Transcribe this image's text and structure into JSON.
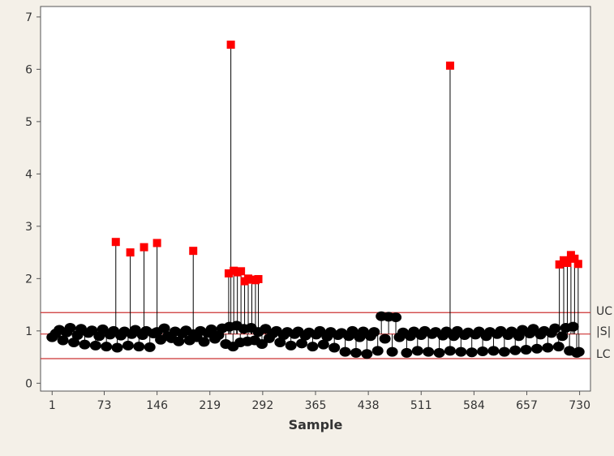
{
  "colors": {
    "background": "#f4f0e8",
    "plot_area": "#ffffff",
    "point": "#000000",
    "out_of_control_point": "#ff0000",
    "limit_line": "#cc3333",
    "axis": "#555555"
  },
  "chart_data": {
    "type": "scatter",
    "title": "",
    "xlabel": "Sample",
    "ylabel": "",
    "xlim": [
      -15,
      745
    ],
    "ylim": [
      -0.15,
      7.2
    ],
    "xticks": [
      1,
      73,
      146,
      219,
      292,
      365,
      438,
      511,
      584,
      657,
      730
    ],
    "yticks": [
      0,
      1,
      2,
      3,
      4,
      5,
      6,
      7
    ],
    "grid": false,
    "limits": [
      {
        "label": "UC",
        "value": 1.35
      },
      {
        "label": "|S|",
        "value": 0.94
      },
      {
        "label": "LC",
        "value": 0.47
      }
    ],
    "series": [
      {
        "role": "in-control",
        "marker": "circle",
        "x": [
          1,
          6,
          11,
          16,
          21,
          26,
          31,
          36,
          41,
          46,
          51,
          56,
          61,
          66,
          71,
          76,
          81,
          86,
          91,
          96,
          101,
          106,
          111,
          116,
          121,
          126,
          131,
          136,
          141,
          146,
          151,
          156,
          161,
          166,
          171,
          176,
          181,
          186,
          191,
          196,
          201,
          206,
          211,
          216,
          221,
          226,
          231,
          236,
          241,
          246,
          251,
          256,
          261,
          266,
          271,
          276,
          281,
          286,
          291,
          296,
          301,
          306,
          311,
          316,
          321,
          326,
          331,
          336,
          341,
          346,
          351,
          356,
          361,
          366,
          371,
          376,
          381,
          386,
          391,
          396,
          401,
          406,
          411,
          416,
          421,
          426,
          431,
          436,
          441,
          446,
          451,
          456,
          461,
          466,
          471,
          476,
          481,
          486,
          491,
          496,
          501,
          506,
          511,
          516,
          521,
          526,
          531,
          536,
          541,
          546,
          551,
          556,
          561,
          566,
          571,
          576,
          581,
          586,
          591,
          596,
          601,
          606,
          611,
          616,
          621,
          626,
          631,
          636,
          641,
          646,
          651,
          656,
          661,
          666,
          671,
          676,
          681,
          686,
          691,
          696,
          701,
          706,
          711,
          716,
          721,
          726,
          729
        ],
        "y": [
          0.88,
          0.95,
          1.02,
          0.82,
          0.97,
          1.06,
          0.78,
          0.92,
          1.04,
          0.74,
          0.96,
          1.01,
          0.72,
          0.9,
          1.03,
          0.7,
          0.93,
          1.0,
          0.68,
          0.91,
          0.99,
          0.72,
          0.94,
          1.02,
          0.7,
          0.92,
          1.0,
          0.69,
          0.95,
          0.98,
          0.83,
          1.05,
          0.9,
          0.86,
          0.99,
          0.8,
          0.95,
          1.01,
          0.82,
          0.94,
          0.88,
          1.0,
          0.79,
          0.96,
          1.03,
          0.85,
          0.92,
          1.05,
          0.75,
          1.08,
          0.7,
          1.1,
          0.78,
          1.04,
          0.8,
          1.06,
          0.82,
          0.98,
          0.75,
          1.04,
          0.86,
          0.95,
          1.0,
          0.78,
          0.92,
          0.98,
          0.72,
          0.94,
          0.99,
          0.76,
          0.91,
          0.97,
          0.7,
          0.93,
          1.0,
          0.74,
          0.89,
          0.98,
          0.68,
          0.92,
          0.96,
          0.6,
          0.9,
          1.0,
          0.58,
          0.88,
          0.99,
          0.56,
          0.9,
          0.98,
          0.62,
          1.28,
          0.85,
          1.27,
          0.6,
          1.26,
          0.88,
          0.97,
          0.58,
          0.9,
          0.99,
          0.62,
          0.92,
          1.0,
          0.6,
          0.94,
          0.98,
          0.58,
          0.91,
          0.99,
          0.62,
          0.9,
          1.0,
          0.6,
          0.92,
          0.97,
          0.59,
          0.93,
          0.99,
          0.61,
          0.9,
          0.98,
          0.62,
          0.94,
          1.0,
          0.6,
          0.92,
          0.99,
          0.63,
          0.9,
          1.02,
          0.64,
          0.95,
          1.04,
          0.66,
          0.93,
          1.0,
          0.68,
          0.96,
          1.05,
          0.7,
          0.9,
          1.06,
          0.62,
          1.08,
          0.58,
          0.6
        ]
      },
      {
        "role": "out-of-control",
        "marker": "square",
        "x": [
          89,
          109,
          128,
          146,
          196,
          245,
          248,
          252,
          257,
          262,
          267,
          272,
          277,
          282,
          286,
          551,
          702,
          708,
          713,
          718,
          723,
          728
        ],
        "y": [
          2.7,
          2.5,
          2.6,
          2.68,
          2.53,
          2.1,
          6.47,
          2.15,
          2.12,
          2.14,
          1.95,
          2.0,
          1.98,
          1.97,
          1.99,
          6.07,
          2.27,
          2.35,
          2.3,
          2.45,
          2.38,
          2.28
        ]
      }
    ]
  }
}
